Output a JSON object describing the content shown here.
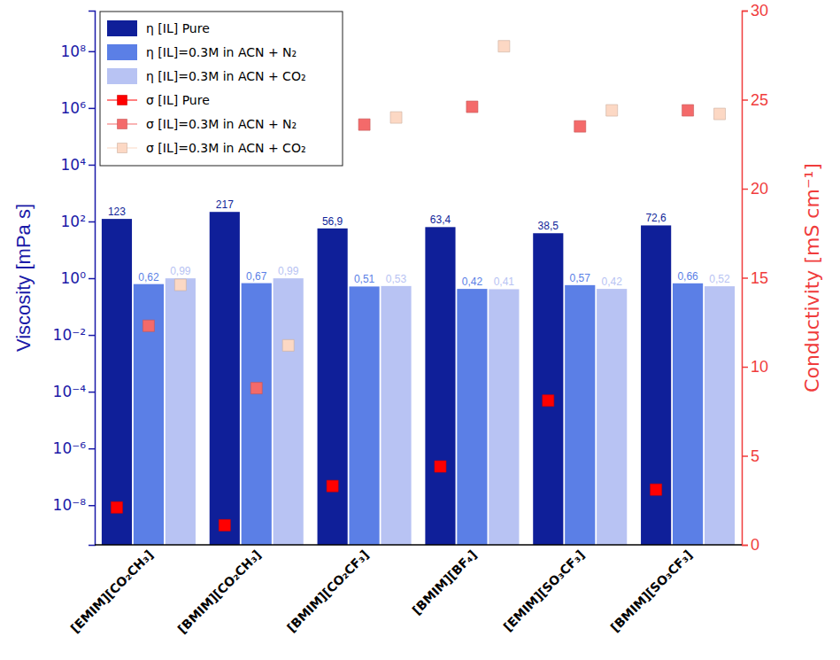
{
  "chart_data": {
    "type": "bar",
    "categories": [
      "[EMIM][CO₂CH₃]",
      "[BMIM][CO₂CH₃]",
      "[BMIM][CO₂CF₃]",
      "[BMIM][BF₄]",
      "[EMIM][SO₃CF₃]",
      "[BMIM][SO₃CF₃]"
    ],
    "y_label": "Viscosity [mPa s]",
    "y2_label": "Conductivity [mS cm⁻¹]",
    "log": "y",
    "ylim": [
      4e-10,
      2700000000.0
    ],
    "yticks": [
      {
        "value": 1e-08,
        "label": "10⁻⁸"
      },
      {
        "value": 1e-06,
        "label": "10⁻⁶"
      },
      {
        "value": 0.0001,
        "label": "10⁻⁴"
      },
      {
        "value": 0.01,
        "label": "10⁻²"
      },
      {
        "value": 1,
        "label": "10⁰"
      },
      {
        "value": 100,
        "label": "10²"
      },
      {
        "value": 10000,
        "label": "10⁴"
      },
      {
        "value": 1000000,
        "label": "10⁶"
      },
      {
        "value": 100000000,
        "label": "10⁸"
      }
    ],
    "y2lim": [
      0,
      30
    ],
    "y2ticks": [
      0,
      5,
      10,
      15,
      20,
      25,
      30
    ],
    "legend": "top-left",
    "data_labels": true,
    "series": [
      {
        "name": "η [IL] Pure",
        "type": "bar",
        "color": "#0f1f99",
        "values": [
          123,
          217,
          56.9,
          63.4,
          38.5,
          72.6
        ],
        "value_labels": [
          "123",
          "217",
          "56,9",
          "63,4",
          "38,5",
          "72,6"
        ]
      },
      {
        "name": "η [IL]=0.3M in ACN + N₂",
        "type": "bar",
        "color": "#5b7fe6",
        "values": [
          0.62,
          0.67,
          0.51,
          0.42,
          0.57,
          0.66
        ],
        "value_labels": [
          "0,62",
          "0,67",
          "0,51",
          "0,42",
          "0,57",
          "0,66"
        ]
      },
      {
        "name": "η [IL]=0.3M in ACN + CO₂",
        "type": "bar",
        "color": "#b8c3f3",
        "values": [
          0.99,
          0.99,
          0.53,
          0.41,
          0.42,
          0.52
        ],
        "value_labels": [
          "0,99",
          "0,99",
          "0,53",
          "0,41",
          "0,42",
          "0,52"
        ]
      },
      {
        "name": "σ [IL] Pure",
        "type": "scatter",
        "marker": "square",
        "axis": "y2",
        "color": "#ff0000",
        "values": [
          2.1,
          1.1,
          3.3,
          4.4,
          8.1,
          3.1
        ]
      },
      {
        "name": "σ [IL]=0.3M in ACN + N₂",
        "type": "scatter",
        "marker": "square",
        "axis": "y2",
        "color": "#f46a6a",
        "values": [
          12.3,
          8.8,
          23.6,
          24.6,
          23.5,
          24.4
        ]
      },
      {
        "name": "σ [IL]=0.3M in ACN + CO₂",
        "type": "scatter",
        "marker": "square",
        "axis": "y2",
        "color": "#fcd8c4",
        "values": [
          14.6,
          11.2,
          24.0,
          28.0,
          24.4,
          24.2
        ]
      }
    ]
  }
}
